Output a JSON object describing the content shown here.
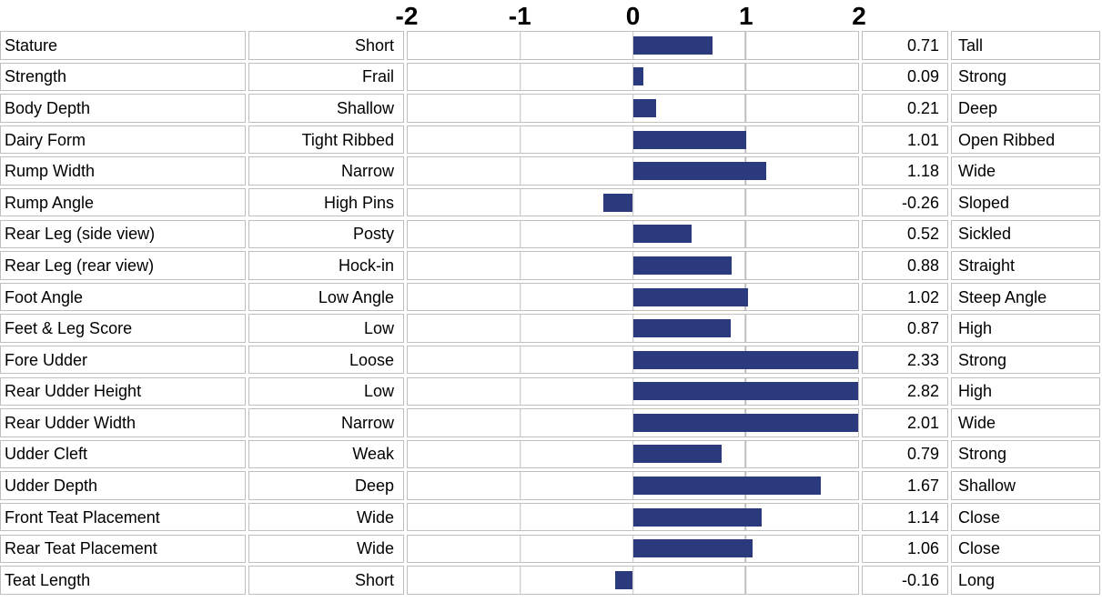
{
  "chart_data": {
    "type": "bar",
    "orientation": "horizontal",
    "title": "",
    "xlabel": "",
    "ylabel": "",
    "xlim": [
      -2,
      2
    ],
    "clip_bars_to_xlim": true,
    "grid": true,
    "axis": {
      "tick_values": [
        -2,
        -1,
        0,
        1,
        2
      ],
      "tick_labels": [
        "-2",
        "-1",
        "0",
        "1",
        "2"
      ]
    },
    "bar_color": "#2b3a7c",
    "grid_color": "#bfbfbf",
    "rows": [
      {
        "trait": "Stature",
        "low": "Short",
        "value": 0.71,
        "value_label": "0.71",
        "high": "Tall"
      },
      {
        "trait": "Strength",
        "low": "Frail",
        "value": 0.09,
        "value_label": "0.09",
        "high": "Strong"
      },
      {
        "trait": "Body Depth",
        "low": "Shallow",
        "value": 0.21,
        "value_label": "0.21",
        "high": "Deep"
      },
      {
        "trait": "Dairy Form",
        "low": "Tight Ribbed",
        "value": 1.01,
        "value_label": "1.01",
        "high": "Open Ribbed"
      },
      {
        "trait": "Rump Width",
        "low": "Narrow",
        "value": 1.18,
        "value_label": "1.18",
        "high": "Wide"
      },
      {
        "trait": "Rump Angle",
        "low": "High Pins",
        "value": -0.26,
        "value_label": "-0.26",
        "high": "Sloped"
      },
      {
        "trait": "Rear Leg (side view)",
        "low": "Posty",
        "value": 0.52,
        "value_label": "0.52",
        "high": "Sickled"
      },
      {
        "trait": "Rear Leg (rear view)",
        "low": "Hock-in",
        "value": 0.88,
        "value_label": "0.88",
        "high": "Straight"
      },
      {
        "trait": "Foot Angle",
        "low": "Low Angle",
        "value": 1.02,
        "value_label": "1.02",
        "high": "Steep Angle"
      },
      {
        "trait": "Feet & Leg Score",
        "low": "Low",
        "value": 0.87,
        "value_label": "0.87",
        "high": "High"
      },
      {
        "trait": "Fore Udder",
        "low": "Loose",
        "value": 2.33,
        "value_label": "2.33",
        "high": "Strong"
      },
      {
        "trait": "Rear Udder Height",
        "low": "Low",
        "value": 2.82,
        "value_label": "2.82",
        "high": "High"
      },
      {
        "trait": "Rear Udder Width",
        "low": "Narrow",
        "value": 2.01,
        "value_label": "2.01",
        "high": "Wide"
      },
      {
        "trait": "Udder Cleft",
        "low": "Weak",
        "value": 0.79,
        "value_label": "0.79",
        "high": "Strong"
      },
      {
        "trait": "Udder Depth",
        "low": "Deep",
        "value": 1.67,
        "value_label": "1.67",
        "high": "Shallow"
      },
      {
        "trait": "Front Teat Placement",
        "low": "Wide",
        "value": 1.14,
        "value_label": "1.14",
        "high": "Close"
      },
      {
        "trait": "Rear Teat Placement",
        "low": "Wide",
        "value": 1.06,
        "value_label": "1.06",
        "high": "Close"
      },
      {
        "trait": "Teat Length",
        "low": "Short",
        "value": -0.16,
        "value_label": "-0.16",
        "high": "Long"
      }
    ]
  }
}
